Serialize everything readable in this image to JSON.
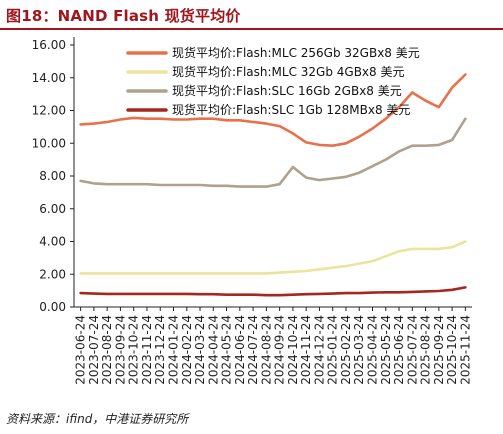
{
  "header": {
    "title": "图18：NAND Flash 现货平均价"
  },
  "footer": {
    "source": "资料来源：ifind，中港证券研究所"
  },
  "chart_data": {
    "type": "line",
    "title": "图18：NAND Flash 现货平均价",
    "xlabel": "",
    "ylabel": "",
    "ylim": [
      0,
      16
    ],
    "yticks": [
      "0.00",
      "2.00",
      "4.00",
      "6.00",
      "8.00",
      "10.00",
      "12.00",
      "14.00",
      "16.00"
    ],
    "legend_position": "top-right",
    "grid": false,
    "x": [
      "2023-06-24",
      "2023-07-24",
      "2023-08-24",
      "2023-09-24",
      "2023-10-24",
      "2023-11-24",
      "2023-12-24",
      "2024-01-24",
      "2024-02-24",
      "2024-03-24",
      "2024-04-24",
      "2024-05-24",
      "2024-06-24",
      "2024-07-24",
      "2024-08-24",
      "2024-09-24",
      "2024-10-24",
      "2024-11-24",
      "2024-12-24",
      "2025-01-24",
      "2025-02-24",
      "2025-03-24",
      "2025-04-24",
      "2025-05-24",
      "2025-06-24",
      "2025-07-24",
      "2025-08-24",
      "2025-09-24",
      "2025-10-24",
      "2025-11-24"
    ],
    "series": [
      {
        "name": "现货平均价:Flash:MLC 256Gb 32GBx8 美元",
        "color": "#e8704a",
        "values": [
          11.15,
          11.2,
          11.3,
          11.45,
          11.55,
          11.5,
          11.5,
          11.45,
          11.45,
          11.5,
          11.5,
          11.4,
          11.4,
          11.3,
          11.2,
          11.05,
          10.6,
          10.05,
          9.9,
          9.85,
          10.0,
          10.4,
          10.9,
          11.5,
          12.2,
          13.1,
          12.6,
          12.2,
          13.4,
          14.2
        ]
      },
      {
        "name": "现货平均价:Flash:MLC 32Gb 4GBx8 美元",
        "color": "#ede39b",
        "values": [
          2.05,
          2.05,
          2.05,
          2.05,
          2.05,
          2.05,
          2.05,
          2.05,
          2.05,
          2.05,
          2.05,
          2.05,
          2.05,
          2.05,
          2.05,
          2.1,
          2.15,
          2.2,
          2.3,
          2.4,
          2.5,
          2.65,
          2.8,
          3.1,
          3.4,
          3.55,
          3.55,
          3.55,
          3.65,
          4.0
        ]
      },
      {
        "name": "现货平均价:Flash:SLC 16Gb 2GBx8 美元",
        "color": "#b0a18a",
        "values": [
          7.7,
          7.55,
          7.5,
          7.5,
          7.5,
          7.5,
          7.45,
          7.45,
          7.45,
          7.45,
          7.4,
          7.4,
          7.35,
          7.35,
          7.35,
          7.5,
          8.55,
          7.9,
          7.75,
          7.85,
          7.95,
          8.2,
          8.6,
          9.0,
          9.5,
          9.85,
          9.85,
          9.9,
          10.2,
          11.5
        ]
      },
      {
        "name": "现货平均价:Flash:SLC 1Gb 128MBx8 美元",
        "color": "#a5281f",
        "values": [
          0.85,
          0.82,
          0.8,
          0.8,
          0.8,
          0.8,
          0.8,
          0.8,
          0.8,
          0.78,
          0.78,
          0.75,
          0.75,
          0.75,
          0.72,
          0.72,
          0.75,
          0.78,
          0.8,
          0.82,
          0.85,
          0.85,
          0.88,
          0.9,
          0.9,
          0.92,
          0.95,
          0.98,
          1.05,
          1.2
        ]
      }
    ]
  }
}
